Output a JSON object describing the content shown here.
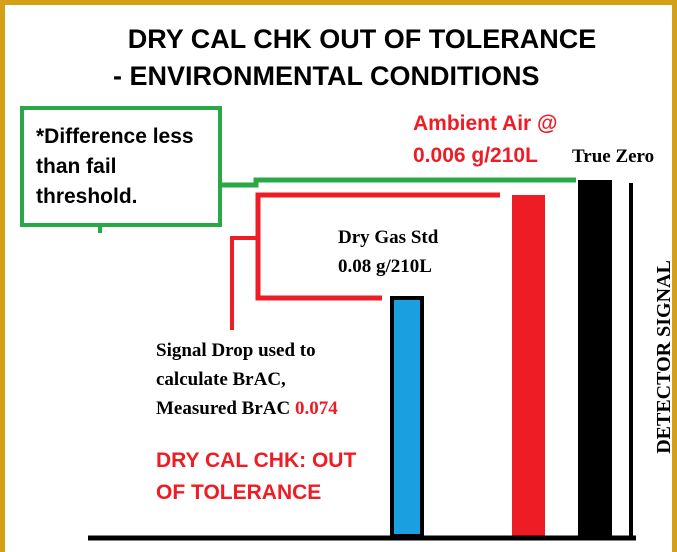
{
  "title": [
    "DRY CAL CHK  OUT OF TOLERANCE",
    "- ENVIRONMENTAL CONDITIONS"
  ],
  "note": [
    "*Difference less",
    "than fail",
    "threshold."
  ],
  "ambient_air": [
    "Ambient Air @",
    "0.006 g/210L"
  ],
  "true_zero": "True Zero",
  "dry_gas_std": [
    "Dry Gas Std",
    "0.08 g/210L"
  ],
  "signal_drop": [
    "Signal Drop used to",
    "calculate BrAC,",
    "Measured BrAC "
  ],
  "measured_brac": "0.074",
  "status": [
    "DRY CAL CHK: OUT",
    "OF TOLERANCE"
  ],
  "axis_label": "DETECTOR SIGNAL"
}
